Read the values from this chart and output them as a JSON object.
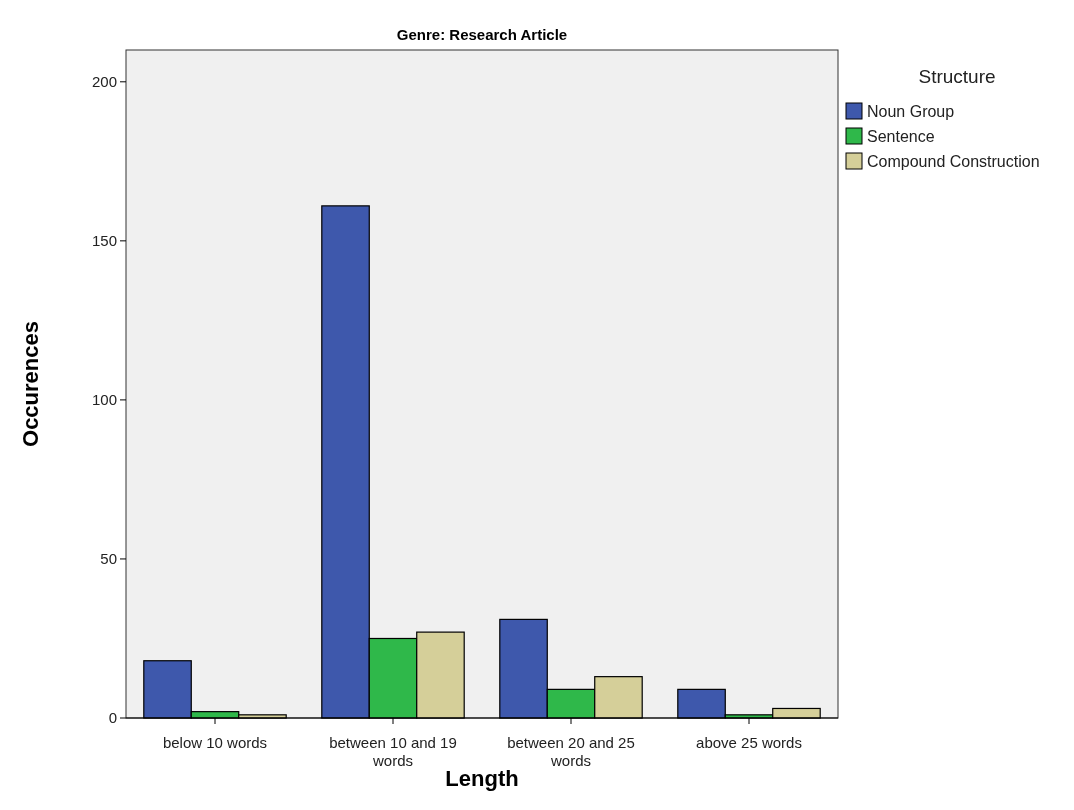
{
  "chart_data": {
    "type": "bar",
    "title": "Genre: Research Article",
    "xlabel": "Length",
    "ylabel": "Occurences",
    "legend_title": "Structure",
    "legend": "right",
    "categories": [
      "below 10 words",
      "between 10 and 19 words",
      "between 20 and 25 words",
      "above 25 words"
    ],
    "series": [
      {
        "name": "Noun Group",
        "color": "#3e58ac",
        "values": [
          18,
          161,
          31,
          9
        ]
      },
      {
        "name": "Sentence",
        "color": "#2fb84a",
        "values": [
          2,
          25,
          9,
          1
        ]
      },
      {
        "name": "Compound Construction",
        "color": "#d5cf99",
        "values": [
          1,
          27,
          13,
          3
        ]
      }
    ],
    "ylim": [
      0,
      210
    ],
    "yticks": [
      0,
      50,
      100,
      150,
      200
    ]
  }
}
